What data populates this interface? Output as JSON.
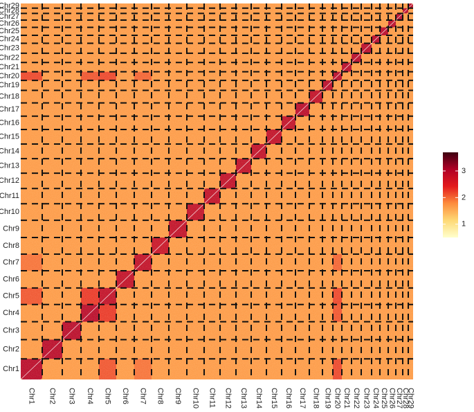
{
  "chart_data": {
    "type": "heatmap",
    "categories": [
      "Chr1",
      "Chr2",
      "Chr3",
      "Chr4",
      "Chr5",
      "Chr6",
      "Chr7",
      "Chr8",
      "Chr9",
      "Chr10",
      "Chr11",
      "Chr12",
      "Chr13",
      "Chr14",
      "Chr15",
      "Chr16",
      "Chr17",
      "Chr18",
      "Chr19",
      "Chr20",
      "Chr21",
      "Chr22",
      "Chr23",
      "Chr24",
      "Chr25",
      "Chr26",
      "Chr27",
      "Chr28",
      "Chr29"
    ],
    "chrom_lengths": [
      31,
      29,
      27,
      26,
      25,
      26,
      25,
      25,
      26,
      25,
      23,
      23,
      22,
      22,
      22,
      20,
      20,
      19,
      15,
      13,
      14,
      14,
      15,
      12,
      12,
      11,
      10,
      8,
      7
    ],
    "diagonal": [
      3.0,
      3.0,
      3.0,
      3.0,
      2.9,
      2.9,
      2.9,
      2.8,
      2.9,
      2.9,
      2.9,
      2.9,
      2.9,
      2.9,
      2.9,
      2.9,
      3.0,
      2.9,
      3.0,
      3.0,
      3.0,
      3.0,
      3.0,
      3.0,
      3.0,
      3.0,
      3.0,
      3.0,
      3.0
    ],
    "background": 1.7,
    "hotspots": [
      {
        "row": "Chr20",
        "col": "Chr1",
        "value": 2.3
      },
      {
        "row": "Chr20",
        "col": "Chr4",
        "value": 2.2
      },
      {
        "row": "Chr20",
        "col": "Chr5",
        "value": 2.3
      },
      {
        "row": "Chr20",
        "col": "Chr7",
        "value": 2.1
      },
      {
        "row": "Chr5",
        "col": "Chr1",
        "value": 2.2
      },
      {
        "row": "Chr7",
        "col": "Chr1",
        "value": 2.0
      },
      {
        "row": "Chr4",
        "col": "Chr5",
        "value": 2.4
      }
    ],
    "colorbar_lim": [
      0.5,
      3.7
    ],
    "colorbar_ticks": [
      1,
      2,
      3
    ],
    "colors": [
      "#ffffcc",
      "#fed976",
      "#fd8d3c",
      "#e31a1c",
      "#b10026",
      "#3d0010"
    ]
  }
}
